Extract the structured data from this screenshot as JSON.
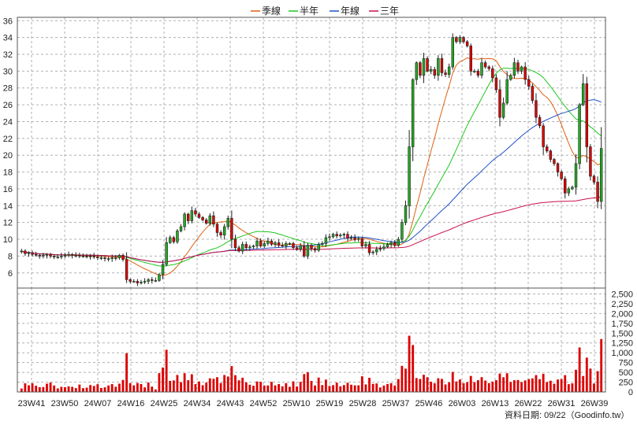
{
  "chart_data": {
    "type": "candlestick",
    "legend": [
      {
        "label": "季線",
        "color": "#e06010"
      },
      {
        "label": "半年",
        "color": "#1ec81e"
      },
      {
        "label": "年線",
        "color": "#1e50c8"
      },
      {
        "label": "三年",
        "color": "#c8104a"
      }
    ],
    "price_axis": {
      "ticks": [
        6,
        8,
        10,
        12,
        14,
        16,
        18,
        20,
        22,
        24,
        26,
        28,
        30,
        32,
        34,
        36
      ],
      "ylim": [
        4.2,
        36.4
      ]
    },
    "volume_axis": {
      "ticks": [
        0,
        250,
        500,
        750,
        "1,000",
        "1,250",
        "1,500",
        "1,750",
        "2,000",
        "2,250",
        "2,500"
      ],
      "ylim": [
        0,
        2650
      ]
    },
    "x_labels": [
      "23W41",
      "23W50",
      "24W07",
      "24W16",
      "24W25",
      "24W34",
      "24W43",
      "24W52",
      "25W10",
      "25W19",
      "25W28",
      "25W37",
      "25W46",
      "26W03",
      "26W13",
      "26W22",
      "26W31",
      "26W39"
    ],
    "grid": true,
    "up_color": "#22aa22",
    "down_color": "#dd0000",
    "volume_color": "#dd0000",
    "source_label": "資料日期: 09/22（Goodinfo.tw）",
    "close": [
      8.6,
      8.3,
      8.4,
      8.2,
      8.1,
      8.0,
      8.1,
      8.2,
      8.0,
      7.9,
      7.9,
      8.0,
      8.1,
      8.2,
      8.1,
      8.1,
      8.0,
      8.0,
      7.9,
      8.0,
      7.9,
      7.8,
      7.8,
      7.7,
      7.7,
      7.8,
      7.8,
      8.1,
      7.6,
      5.2,
      5.0,
      5.0,
      4.8,
      4.9,
      5.0,
      5.2,
      5.1,
      5.1,
      5.8,
      7.0,
      9.6,
      10.2,
      9.7,
      11.0,
      11.5,
      13.0,
      12.2,
      13.4,
      13.0,
      12.6,
      12.3,
      11.9,
      12.8,
      11.8,
      10.8,
      10.5,
      11.5,
      12.5,
      10.0,
      9.0,
      8.6,
      9.4,
      9.0,
      9.1,
      9.2,
      9.8,
      9.2,
      9.5,
      9.8,
      9.4,
      9.6,
      9.3,
      9.2,
      9.5,
      9.5,
      9.0,
      8.8,
      9.2,
      8.0,
      9.3,
      8.9,
      8.7,
      9.4,
      9.5,
      10.2,
      10.3,
      10.6,
      10.4,
      10.5,
      10.6,
      10.1,
      10.2,
      10.0,
      10.1,
      9.2,
      9.4,
      8.4,
      8.5,
      8.8,
      8.9,
      9.1,
      9.4,
      9.6,
      9.3,
      10.0,
      12.0,
      14.0,
      21.0,
      29.0,
      31.0,
      29.5,
      31.5,
      30.0,
      30.2,
      29.5,
      31.5,
      29.8,
      29.6,
      30.5,
      34.0,
      33.5,
      34.0,
      33.5,
      33.0,
      30.0,
      30.0,
      29.5,
      31.0,
      30.5,
      30.3,
      29.2,
      27.8,
      24.5,
      26.2,
      29.0,
      29.5,
      31.0,
      30.0,
      30.5,
      29.0,
      28.2,
      26.5,
      24.5,
      23.5,
      21.0,
      20.5,
      19.5,
      19.0,
      18.0,
      17.2,
      15.5,
      16.0,
      16.2,
      19.0,
      26.0,
      28.5,
      21.0,
      17.5,
      16.8,
      14.5,
      20.8
    ]
  }
}
